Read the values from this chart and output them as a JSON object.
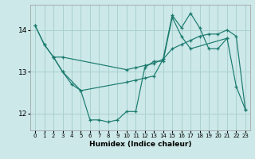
{
  "xlabel": "Humidex (Indice chaleur)",
  "bg_color": "#cce8e8",
  "grid_color": "#aad0d0",
  "line_color": "#1a7a6e",
  "xlim": [
    -0.5,
    23.5
  ],
  "ylim": [
    11.6,
    14.6
  ],
  "yticks": [
    12,
    13,
    14
  ],
  "xticks": [
    0,
    1,
    2,
    3,
    4,
    5,
    6,
    7,
    8,
    9,
    10,
    11,
    12,
    13,
    14,
    15,
    16,
    17,
    18,
    19,
    20,
    21,
    22,
    23
  ],
  "series": [
    {
      "x": [
        0,
        1,
        2,
        3,
        10,
        11,
        12,
        13,
        14,
        15,
        16,
        17,
        18,
        19,
        20,
        21,
        22,
        23
      ],
      "y": [
        14.1,
        13.65,
        13.35,
        13.35,
        13.05,
        13.1,
        13.15,
        13.2,
        13.3,
        13.55,
        13.65,
        13.75,
        13.85,
        13.9,
        13.9,
        14.0,
        13.85,
        12.1
      ]
    },
    {
      "x": [
        0,
        1,
        2,
        3,
        4,
        5,
        6,
        7,
        8,
        9,
        10,
        11,
        12,
        13,
        14,
        15,
        16,
        17,
        21,
        22,
        23
      ],
      "y": [
        14.1,
        13.65,
        13.35,
        13.0,
        12.7,
        12.55,
        11.85,
        11.85,
        11.8,
        11.85,
        12.05,
        12.05,
        13.1,
        13.25,
        13.25,
        14.3,
        13.85,
        13.55,
        13.8,
        12.65,
        12.1
      ]
    },
    {
      "x": [
        2,
        3,
        5,
        10,
        11,
        12,
        13,
        14,
        15,
        16,
        17,
        18,
        19,
        20,
        21
      ],
      "y": [
        13.35,
        13.0,
        12.55,
        12.75,
        12.8,
        12.85,
        12.9,
        13.3,
        14.35,
        14.05,
        14.4,
        14.05,
        13.55,
        13.55,
        13.8
      ]
    }
  ]
}
